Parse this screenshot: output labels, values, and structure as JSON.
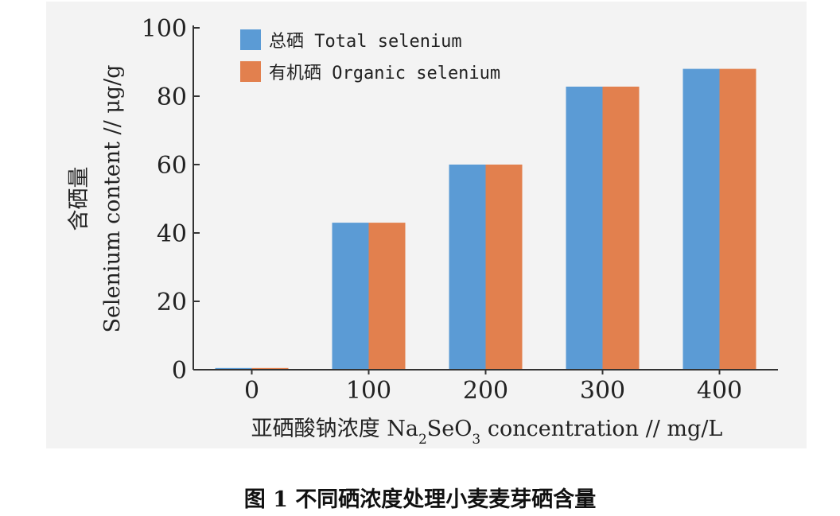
{
  "chart_data": {
    "type": "bar",
    "categories": [
      "0",
      "100",
      "200",
      "300",
      "400"
    ],
    "series": [
      {
        "name": "总硒 Total selenium",
        "values": [
          0.5,
          43,
          60,
          82.8,
          88
        ],
        "color": "#5b9bd5"
      },
      {
        "name": "有机硒 Organic selenium",
        "values": [
          0.5,
          43,
          60,
          82.8,
          88
        ],
        "color": "#e2804e"
      }
    ],
    "ylim": [
      0,
      100
    ],
    "yticks": [
      0,
      20,
      40,
      60,
      80,
      100
    ],
    "ylabel_line1": "含硒量",
    "ylabel_line2": "Selenium content // μg/g",
    "xlabel_prefix": "亚硒酸钠浓度 Na",
    "xlabel_sub1": "2",
    "xlabel_mid": "SeO",
    "xlabel_sub2": "3",
    "xlabel_suffix": " concentration // mg/L",
    "legend_position": "top-left",
    "grid": false
  },
  "caption": {
    "figure_number": "图 1",
    "text": "不同硒浓度处理小麦麦芽硒含量"
  }
}
